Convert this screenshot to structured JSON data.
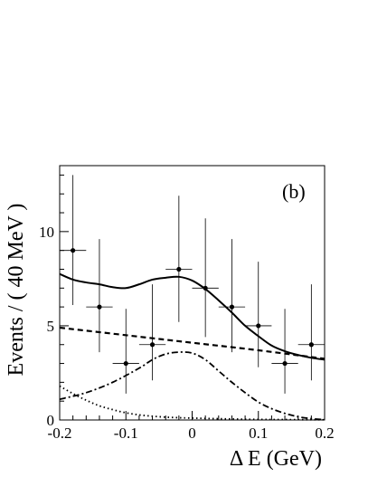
{
  "chart_data": {
    "type": "scatter",
    "panel_label": "(b)",
    "xlabel": "Δ E (GeV)",
    "ylabel": "Events / ( 40 MeV )",
    "xlim": [
      -0.2,
      0.2
    ],
    "ylim": [
      0,
      13.5
    ],
    "x_ticks": [
      -0.2,
      -0.1,
      0,
      0.1,
      0.2
    ],
    "x_tick_labels": [
      "-0.2",
      "-0.1",
      "0",
      "0.1",
      "0.2"
    ],
    "y_ticks": [
      0,
      5,
      10
    ],
    "y_tick_labels": [
      "0",
      "5",
      "10"
    ],
    "grid": false,
    "data_points": [
      {
        "x": -0.18,
        "y": 9,
        "yerr_low": 2.9,
        "yerr_high": 4.0,
        "xerr": 0.02
      },
      {
        "x": -0.14,
        "y": 6,
        "yerr_low": 2.4,
        "yerr_high": 3.6,
        "xerr": 0.02
      },
      {
        "x": -0.1,
        "y": 3,
        "yerr_low": 1.6,
        "yerr_high": 2.9,
        "xerr": 0.02
      },
      {
        "x": -0.06,
        "y": 4,
        "yerr_low": 1.9,
        "yerr_high": 3.2,
        "xerr": 0.02
      },
      {
        "x": -0.02,
        "y": 8,
        "yerr_low": 2.8,
        "yerr_high": 3.9,
        "xerr": 0.02
      },
      {
        "x": 0.02,
        "y": 7,
        "yerr_low": 2.6,
        "yerr_high": 3.7,
        "xerr": 0.02
      },
      {
        "x": 0.06,
        "y": 6,
        "yerr_low": 2.4,
        "yerr_high": 3.6,
        "xerr": 0.02
      },
      {
        "x": 0.1,
        "y": 5,
        "yerr_low": 2.2,
        "yerr_high": 3.4,
        "xerr": 0.02
      },
      {
        "x": 0.14,
        "y": 3,
        "yerr_low": 1.6,
        "yerr_high": 2.9,
        "xerr": 0.02
      },
      {
        "x": 0.18,
        "y": 4,
        "yerr_low": 1.9,
        "yerr_high": 3.2,
        "xerr": 0.02
      }
    ],
    "curves": [
      {
        "style": "solid",
        "x": [
          -0.2,
          -0.18,
          -0.16,
          -0.14,
          -0.12,
          -0.1,
          -0.08,
          -0.06,
          -0.04,
          -0.02,
          0,
          0.02,
          0.04,
          0.06,
          0.08,
          0.1,
          0.12,
          0.14,
          0.16,
          0.18,
          0.2
        ],
        "y": [
          7.75,
          7.45,
          7.3,
          7.2,
          7.05,
          7.0,
          7.2,
          7.45,
          7.55,
          7.6,
          7.4,
          6.95,
          6.35,
          5.7,
          5.0,
          4.45,
          3.95,
          3.65,
          3.45,
          3.3,
          3.2
        ]
      },
      {
        "style": "dashed",
        "x": [
          -0.2,
          -0.1,
          0,
          0.1,
          0.2
        ],
        "y": [
          4.9,
          4.5,
          4.1,
          3.7,
          3.25
        ]
      },
      {
        "style": "dash-dot",
        "x": [
          -0.2,
          -0.16,
          -0.12,
          -0.08,
          -0.06,
          -0.04,
          -0.02,
          0,
          0.02,
          0.04,
          0.06,
          0.08,
          0.1,
          0.12,
          0.14,
          0.16,
          0.18,
          0.2
        ],
        "y": [
          1.1,
          1.45,
          2.0,
          2.75,
          3.2,
          3.5,
          3.6,
          3.55,
          3.2,
          2.6,
          2.0,
          1.45,
          0.95,
          0.6,
          0.35,
          0.17,
          0.07,
          0.02
        ]
      },
      {
        "style": "dotted",
        "x": [
          -0.2,
          -0.18,
          -0.16,
          -0.14,
          -0.12,
          -0.1,
          -0.08,
          -0.06,
          -0.04,
          -0.02,
          0,
          0.05,
          0.1,
          0.2
        ],
        "y": [
          1.8,
          1.4,
          1.05,
          0.75,
          0.55,
          0.38,
          0.27,
          0.2,
          0.15,
          0.12,
          0.1,
          0.06,
          0.03,
          0.01
        ]
      }
    ]
  }
}
